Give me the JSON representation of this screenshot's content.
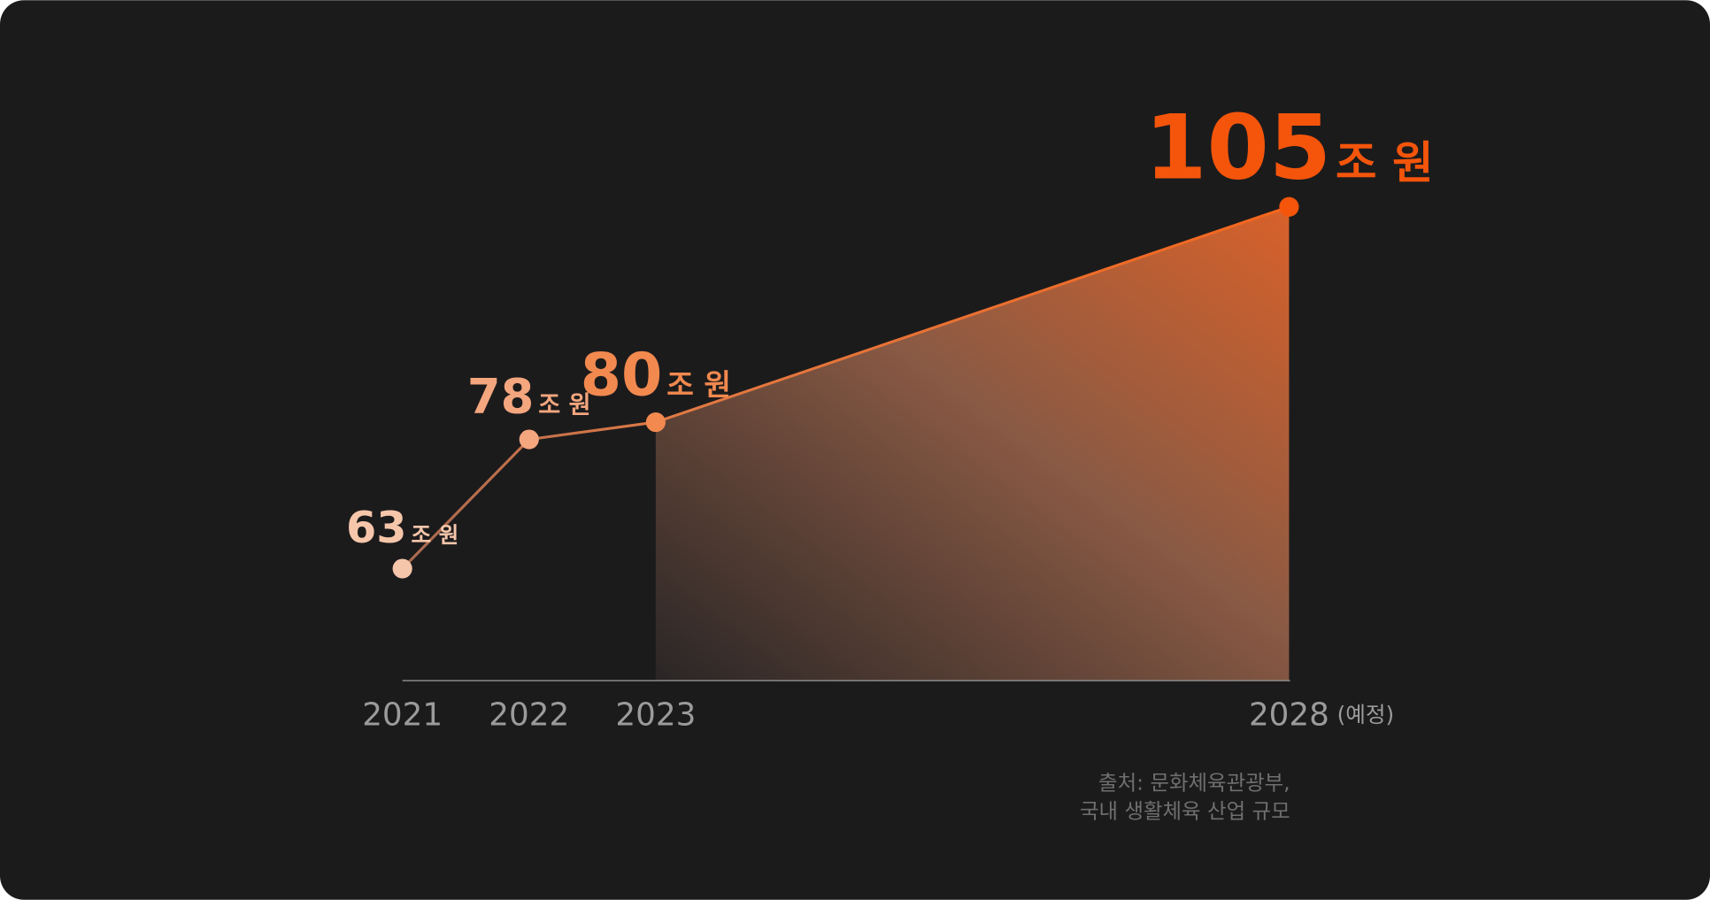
{
  "chart_data": {
    "type": "line",
    "x": [
      2021,
      2022,
      2023,
      2028
    ],
    "values": [
      63,
      78,
      80,
      105
    ],
    "unit": "조 원",
    "colors": [
      "#f6c6aa",
      "#f4a67e",
      "#f2894f",
      "#f4550b"
    ],
    "line_color": "#f07c40",
    "xlim": [
      2021,
      2028
    ],
    "xticks": [
      2021,
      2022,
      2023,
      2028
    ],
    "ylim": [
      50,
      110
    ],
    "forecast_note": "(예정)",
    "source": [
      "출처: 문화체육관광부,",
      "국내 생활체육 산업 규모"
    ]
  }
}
